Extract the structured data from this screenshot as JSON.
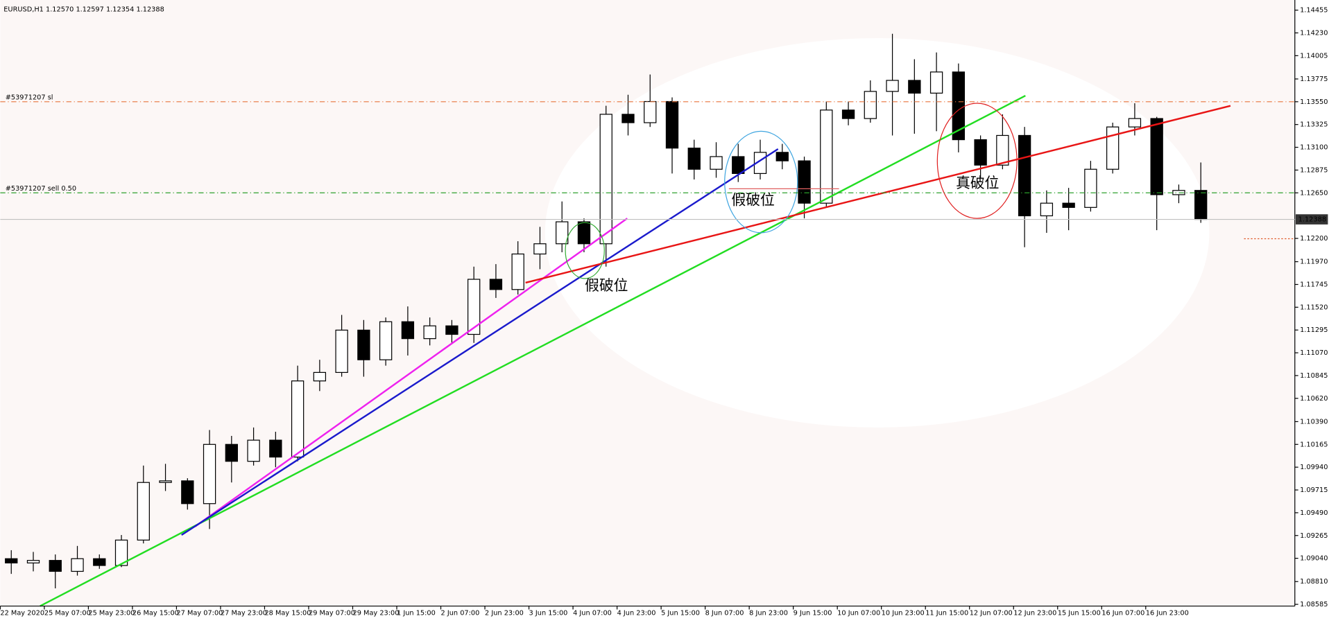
{
  "chart_data": {
    "type": "candlestick",
    "title": "EURUSD,H1  1.12570 1.12597 1.12354 1.12388",
    "open": [
      1.09036,
      1.08994,
      1.09019,
      1.08911,
      1.09036,
      1.08969,
      1.0922,
      1.09789,
      1.09805,
      1.0958,
      1.10165,
      1.09998,
      1.10207,
      1.1004,
      1.10792,
      1.10876,
      1.11294,
      1.11001,
      1.11377,
      1.1121,
      1.11336,
      1.11252,
      1.11796,
      1.11695,
      1.12046,
      1.12147,
      1.12364,
      1.12147,
      1.13426,
      1.13343,
      1.13552,
      1.13092,
      1.12883,
      1.13008,
      1.12841,
      1.1305,
      1.12966,
      1.12548,
      1.13468,
      1.13384,
      1.13652,
      1.13761,
      1.13635,
      1.13844,
      1.13175,
      1.12924,
      1.13217,
      1.12423,
      1.12548,
      1.12506,
      1.12883,
      1.13301,
      1.13384,
      1.12632,
      1.12674
    ],
    "high": [
      1.0912,
      1.09103,
      1.09078,
      1.09162,
      1.09078,
      1.0927,
      1.09956,
      1.09973,
      1.09831,
      1.10307,
      1.10249,
      1.10332,
      1.1029,
      1.10943,
      1.11001,
      1.11444,
      1.11394,
      1.11419,
      1.11528,
      1.11419,
      1.11394,
      1.11921,
      1.11946,
      1.12172,
      1.12314,
      1.12565,
      1.12398,
      1.1351,
      1.13619,
      1.13819,
      1.13593,
      1.13175,
      1.1315,
      1.13134,
      1.13175,
      1.13134,
      1.13008,
      1.13552,
      1.13552,
      1.13761,
      1.14221,
      1.1397,
      1.14037,
      1.13928,
      1.13217,
      1.13426,
      1.13301,
      1.12674,
      1.12699,
      1.12966,
      1.13343,
      1.13535,
      1.13401,
      1.12732,
      1.1295
    ],
    "low": [
      1.08886,
      1.08911,
      1.08743,
      1.08869,
      1.08936,
      1.08953,
      1.09187,
      1.09705,
      1.09521,
      1.09329,
      1.09789,
      1.09956,
      1.09939,
      1.09998,
      1.10692,
      1.10834,
      1.10834,
      1.10943,
      1.11043,
      1.11143,
      1.11168,
      1.11168,
      1.11612,
      1.11645,
      1.11896,
      1.12063,
      1.12063,
      1.11921,
      1.13217,
      1.13301,
      1.12841,
      1.12782,
      1.12799,
      1.12757,
      1.12782,
      1.12883,
      1.12398,
      1.12506,
      1.13317,
      1.13343,
      1.13217,
      1.13234,
      1.13259,
      1.1305,
      1.12799,
      1.12883,
      1.12113,
      1.12255,
      1.12281,
      1.12465,
      1.12841,
      1.13217,
      1.12281,
      1.12548,
      1.12354
    ],
    "close": [
      1.08994,
      1.09019,
      1.08911,
      1.09036,
      1.08969,
      1.0922,
      1.09789,
      1.09805,
      1.0958,
      1.10165,
      1.09998,
      1.10207,
      1.1004,
      1.10792,
      1.10876,
      1.11294,
      1.11001,
      1.11377,
      1.1121,
      1.11336,
      1.11252,
      1.11796,
      1.11695,
      1.12046,
      1.12147,
      1.12364,
      1.12147,
      1.13426,
      1.13343,
      1.13552,
      1.13092,
      1.12883,
      1.13008,
      1.12841,
      1.1305,
      1.12966,
      1.12548,
      1.13468,
      1.13384,
      1.13652,
      1.13761,
      1.13635,
      1.13844,
      1.13175,
      1.12924,
      1.13217,
      1.12423,
      1.12548,
      1.12506,
      1.12883,
      1.13301,
      1.13384,
      1.12632,
      1.12674,
      1.12388
    ],
    "x_labels": [
      "22 May 2020",
      "25 May 07:00",
      "25 May 23:00",
      "26 May 15:00",
      "27 May 07:00",
      "27 May 23:00",
      "28 May 15:00",
      "29 May 07:00",
      "29 May 23:00",
      "1 Jun 15:00",
      "2 Jun 07:00",
      "2 Jun 23:00",
      "3 Jun 15:00",
      "4 Jun 07:00",
      "4 Jun 23:00",
      "5 Jun 15:00",
      "8 Jun 07:00",
      "8 Jun 23:00",
      "9 Jun 15:00",
      "10 Jun 07:00",
      "10 Jun 23:00",
      "11 Jun 15:00",
      "12 Jun 07:00",
      "12 Jun 23:00",
      "15 Jun 15:00",
      "16 Jun 07:00",
      "16 Jun 23:00"
    ],
    "ylim": [
      1.08568,
      1.14555
    ],
    "yticks": [
      1.14455,
      {
        "value": 1.1423,
        "label": "1.14230"
      },
      1.14005,
      1.13775,
      {
        "value": 1.1355,
        "label": "1.13550"
      },
      1.13325,
      {
        "value": 1.131,
        "label": "1.13100"
      },
      1.12875,
      {
        "value": 1.1265,
        "label": "1.12650"
      },
      {
        "value": 1.122,
        "label": "1.12200"
      },
      {
        "value": 1.1197,
        "label": "1.11970"
      },
      1.11745,
      {
        "value": 1.1152,
        "label": "1.11520"
      },
      1.11295,
      {
        "value": 1.1107,
        "label": "1.11070"
      },
      1.10845,
      {
        "value": 1.1062,
        "label": "1.10620"
      },
      {
        "value": 1.1039,
        "label": "1.10390"
      },
      1.10165,
      {
        "value": 1.0994,
        "label": "1.09940"
      },
      1.09715,
      {
        "value": 1.0949,
        "label": "1.09490"
      },
      1.09265,
      {
        "value": 1.0904,
        "label": "1.09040"
      },
      {
        "value": 1.0881,
        "label": "1.08810"
      },
      1.08585
    ],
    "hlines": [
      {
        "label": "#53971207 sl",
        "value": 1.1355,
        "color": "#e8743b"
      },
      {
        "label": "#53971207 sell 0.50",
        "value": 1.1265,
        "color": "#2ca02c"
      }
    ],
    "last_price": 1.12388,
    "annotations": [
      {
        "text": "假破位",
        "color": "#666666"
      },
      {
        "text": "假破位",
        "color": "#666666"
      },
      {
        "text": "真破位",
        "color": "#e02020"
      }
    ]
  }
}
